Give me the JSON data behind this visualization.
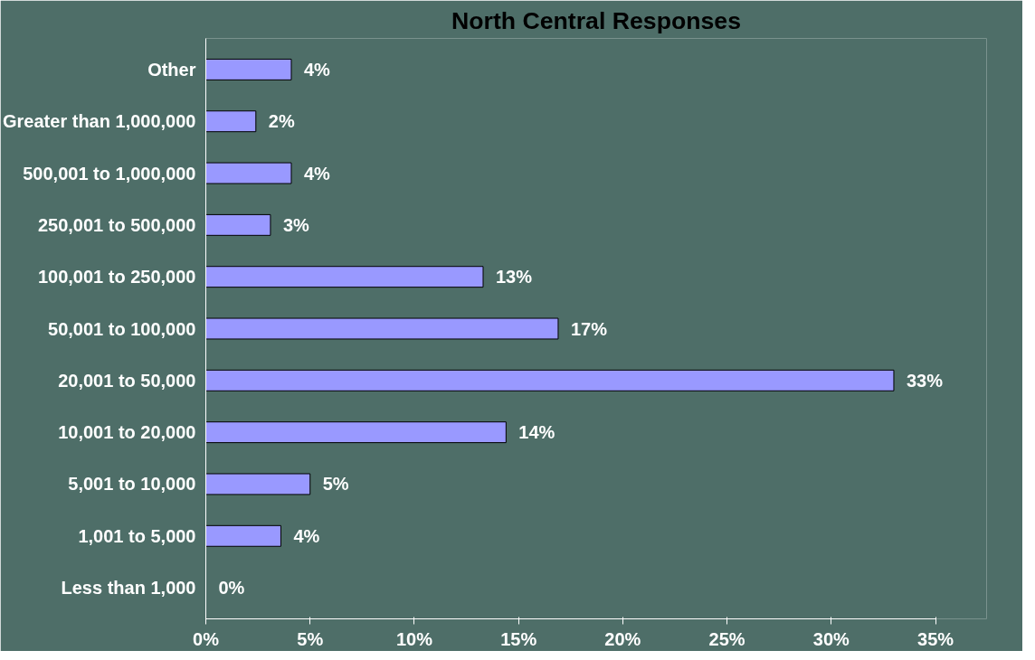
{
  "chart_data": {
    "type": "bar",
    "orientation": "horizontal",
    "title": "North Central Responses",
    "categories": [
      "Other",
      "Greater than 1,000,000",
      "500,001 to 1,000,000",
      "250,001 to 500,000",
      "100,001 to 250,000",
      "50,001 to 100,000",
      "20,001 to 50,000",
      "10,001 to 20,000",
      "5,001 to 10,000",
      "1,001 to 5,000",
      "Less than 1,000"
    ],
    "values": [
      4.1,
      2.4,
      4.1,
      3.1,
      13.3,
      16.9,
      33.0,
      14.4,
      5.0,
      3.6,
      0
    ],
    "value_labels": [
      "4%",
      "2%",
      "4%",
      "3%",
      "13%",
      "17%",
      "33%",
      "14%",
      "5%",
      "4%",
      "0%"
    ],
    "color": "#9999ff",
    "xlim": [
      0,
      35
    ],
    "xticks": [
      {
        "value": 0,
        "label": "0%"
      },
      {
        "value": 5,
        "label": "5%"
      },
      {
        "value": 10,
        "label": "10%"
      },
      {
        "value": 15,
        "label": "15%"
      },
      {
        "value": 20,
        "label": "20%"
      },
      {
        "value": 25,
        "label": "25%"
      },
      {
        "value": 30,
        "label": "30%"
      },
      {
        "value": 35,
        "label": "35%"
      }
    ],
    "grid": false
  }
}
